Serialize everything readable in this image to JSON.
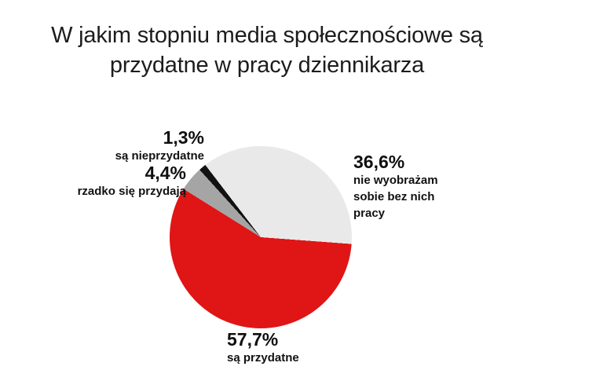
{
  "title": {
    "line1": "W jakim stopniu media społecznościowe są",
    "line2": "przydatne w pracy dziennikarza"
  },
  "labels": {
    "useless": {
      "percent": "1,3%",
      "caption": "są nieprzydatne"
    },
    "rarely": {
      "percent": "4,4%",
      "caption": "rzadko się przydają"
    },
    "cant_imagine": {
      "percent": "36,6%",
      "caption": "nie wyobrażam\nsobie bez nich\npracy"
    },
    "useful": {
      "percent": "57,7%",
      "caption": "są przydatne"
    }
  },
  "chart_data": {
    "type": "pie",
    "title": "W jakim stopniu media społecznościowe są przydatne w pracy dziennikarza",
    "slices": [
      {
        "label": "nie wyobrażam sobie bez nich pracy",
        "value": 36.6,
        "display": "36,6%",
        "color": "#e9e9e9"
      },
      {
        "label": "są przydatne",
        "value": 57.7,
        "display": "57,7%",
        "color": "#e01515"
      },
      {
        "label": "rzadko się przydają",
        "value": 4.4,
        "display": "4,4%",
        "color": "#a5a5a5"
      },
      {
        "label": "są nieprzydatne",
        "value": 1.3,
        "display": "1,3%",
        "color": "#111111"
      }
    ],
    "start_angle_deg": -37.5,
    "direction": "clockwise",
    "legend": "none",
    "label_position": "outside",
    "background": "#ffffff"
  }
}
